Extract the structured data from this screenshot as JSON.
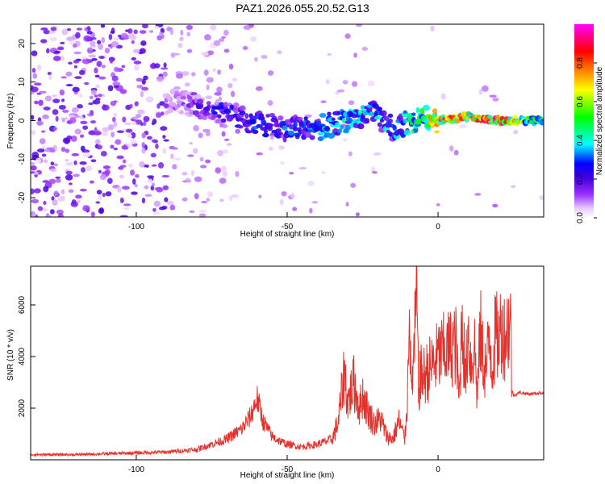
{
  "title": "PAZ1.2026.055.20.52.G13",
  "chart_data": [
    {
      "type": "heatmap",
      "xlabel": "Height of straight line (km)",
      "ylabel": "Frequency (Hz)",
      "xlim": [
        -135,
        35
      ],
      "ylim": [
        -25,
        25
      ],
      "xticks": [
        -100,
        -50,
        0
      ],
      "yticks": [
        -20,
        -10,
        0,
        10,
        20
      ],
      "colorbar": {
        "label": "Normalized spectral amplitude",
        "range": [
          0,
          1
        ],
        "ticks": [
          0.0,
          0.2,
          0.4,
          0.6,
          0.8
        ],
        "colors": [
          "#ffffff",
          "#e8c8ff",
          "#9b30ff",
          "#4b00e0",
          "#0000ff",
          "#00ffff",
          "#00ff00",
          "#ffff00",
          "#ff8000",
          "#ff0000",
          "#ff00ff"
        ]
      },
      "ridge": [
        {
          "x": -85,
          "y": 5,
          "amp": 0.15
        },
        {
          "x": -75,
          "y": 3,
          "amp": 0.25
        },
        {
          "x": -70,
          "y": 2,
          "amp": 0.3
        },
        {
          "x": -60,
          "y": -1,
          "amp": 0.3
        },
        {
          "x": -50,
          "y": -2,
          "amp": 0.3
        },
        {
          "x": -40,
          "y": -2,
          "amp": 0.35
        },
        {
          "x": -30,
          "y": 0,
          "amp": 0.4
        },
        {
          "x": -22,
          "y": 2,
          "amp": 0.35
        },
        {
          "x": -15,
          "y": -2,
          "amp": 0.4
        },
        {
          "x": -5,
          "y": 1,
          "amp": 0.5
        },
        {
          "x": 0,
          "y": 0,
          "amp": 0.8
        },
        {
          "x": 10,
          "y": 1,
          "amp": 0.7
        },
        {
          "x": 20,
          "y": 0,
          "amp": 0.9
        },
        {
          "x": 30,
          "y": 0,
          "amp": 0.5
        }
      ]
    },
    {
      "type": "line",
      "xlabel": "Height of straight line (km)",
      "ylabel": "SNR (10 * v/v)",
      "xlim": [
        -135,
        35
      ],
      "ylim": [
        0,
        7500
      ],
      "xticks": [
        -100,
        -50,
        0
      ],
      "yticks": [
        2000,
        4000,
        6000
      ],
      "color": "#e8302b",
      "series": [
        {
          "x": [
            -135,
            -120,
            -105,
            -90,
            -80,
            -75,
            -70,
            -65,
            -62,
            -60,
            -58,
            -55,
            -52,
            -50,
            -45,
            -40,
            -35,
            -33,
            -31,
            -30,
            -28,
            -26,
            -25,
            -23,
            -21,
            -19,
            -17,
            -15,
            -13,
            -11,
            -10,
            -9.5,
            -9,
            -8,
            -7,
            -6.5,
            -6,
            -5,
            -3,
            -1,
            0,
            2,
            4,
            5,
            6,
            7,
            8,
            9,
            10,
            11,
            12,
            13,
            14,
            15,
            16,
            17,
            18,
            19,
            20,
            21,
            22,
            23,
            24,
            24.5,
            25,
            27,
            30,
            35
          ],
          "y": [
            200,
            200,
            250,
            300,
            400,
            600,
            800,
            1200,
            1700,
            2400,
            1500,
            900,
            700,
            600,
            500,
            600,
            800,
            1500,
            3500,
            2200,
            3000,
            2000,
            2500,
            1800,
            1400,
            1600,
            900,
            800,
            1500,
            800,
            2800,
            7400,
            2500,
            4000,
            6500,
            2500,
            3300,
            3200,
            3500,
            3800,
            4000,
            4200,
            4300,
            4500,
            4400,
            2200,
            5800,
            3000,
            5000,
            3600,
            4600,
            2500,
            5000,
            3800,
            3500,
            4800,
            3600,
            4900,
            4600,
            5200,
            4800,
            5100,
            5400,
            2700,
            2500,
            2600,
            2550,
            2600
          ]
        }
      ]
    }
  ]
}
